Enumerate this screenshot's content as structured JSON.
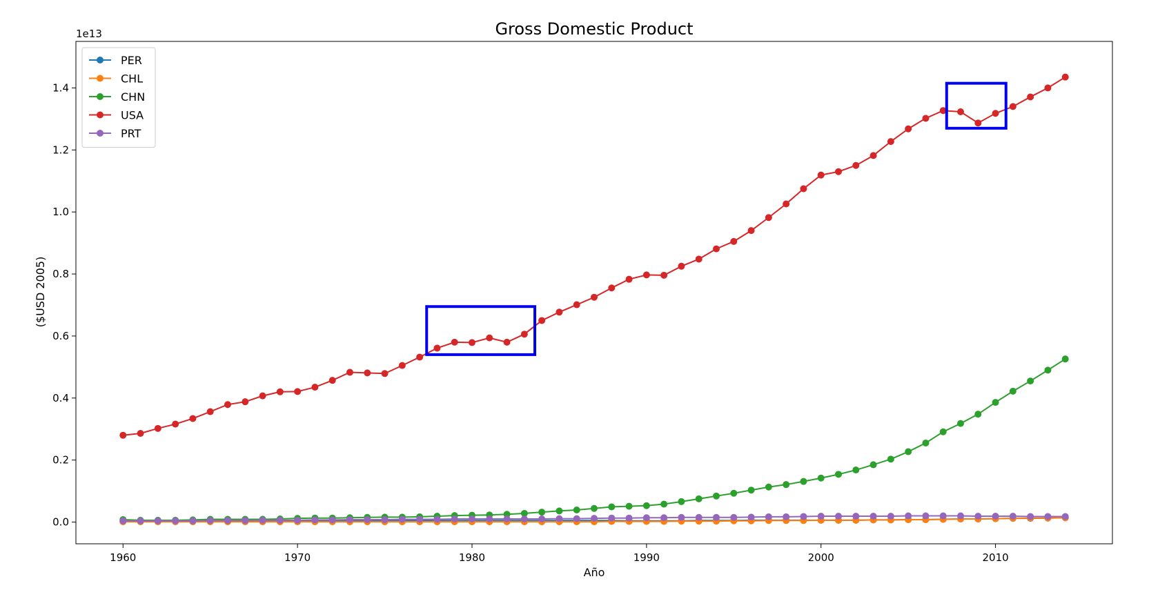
{
  "chart_data": {
    "type": "line",
    "title": "Gross Domestic Product",
    "xlabel": "Año",
    "ylabel": "($USD 2005)",
    "y_multiplier_label": "1e13",
    "xlim": [
      1957.3,
      2016.7
    ],
    "ylim": [
      -0.07,
      1.55
    ],
    "x_ticks": [
      1960,
      1970,
      1980,
      1990,
      2000,
      2010
    ],
    "y_ticks": [
      0.0,
      0.2,
      0.4,
      0.6,
      0.8,
      1.0,
      1.2,
      1.4
    ],
    "y_tick_labels": [
      "0.0",
      "0.2",
      "0.4",
      "0.6",
      "0.8",
      "1.0",
      "1.2",
      "1.4"
    ],
    "grid": false,
    "legend_position": "top-left",
    "x": [
      1960,
      1961,
      1962,
      1963,
      1964,
      1965,
      1966,
      1967,
      1968,
      1969,
      1970,
      1971,
      1972,
      1973,
      1974,
      1975,
      1976,
      1977,
      1978,
      1979,
      1980,
      1981,
      1982,
      1983,
      1984,
      1985,
      1986,
      1987,
      1988,
      1989,
      1990,
      1991,
      1992,
      1993,
      1994,
      1995,
      1996,
      1997,
      1998,
      1999,
      2000,
      2001,
      2002,
      2003,
      2004,
      2005,
      2006,
      2007,
      2008,
      2009,
      2010,
      2011,
      2012,
      2013,
      2014
    ],
    "series": [
      {
        "name": "PER",
        "color": "#1f77b4",
        "values": [
          0.003,
          0.003,
          0.003,
          0.003,
          0.003,
          0.003,
          0.003,
          0.004,
          0.004,
          0.004,
          0.004,
          0.004,
          0.004,
          0.004,
          0.004,
          0.005,
          0.005,
          0.005,
          0.005,
          0.005,
          0.005,
          0.005,
          0.005,
          0.005,
          0.005,
          0.005,
          0.005,
          0.005,
          0.005,
          0.004,
          0.004,
          0.004,
          0.004,
          0.005,
          0.005,
          0.005,
          0.006,
          0.006,
          0.006,
          0.006,
          0.006,
          0.006,
          0.006,
          0.007,
          0.007,
          0.008,
          0.008,
          0.009,
          0.01,
          0.01,
          0.011,
          0.012,
          0.012,
          0.013,
          0.014
        ]
      },
      {
        "name": "CHL",
        "color": "#ff7f0e",
        "values": [
          0.001,
          0.001,
          0.001,
          0.001,
          0.001,
          0.001,
          0.001,
          0.001,
          0.001,
          0.001,
          0.001,
          0.001,
          0.001,
          0.001,
          0.001,
          0.001,
          0.001,
          0.001,
          0.001,
          0.001,
          0.001,
          0.001,
          0.001,
          0.001,
          0.001,
          0.001,
          0.001,
          0.001,
          0.002,
          0.002,
          0.002,
          0.002,
          0.003,
          0.003,
          0.003,
          0.004,
          0.004,
          0.005,
          0.005,
          0.005,
          0.006,
          0.006,
          0.006,
          0.007,
          0.007,
          0.008,
          0.008,
          0.009,
          0.01,
          0.01,
          0.011,
          0.012,
          0.013,
          0.013,
          0.014
        ]
      },
      {
        "name": "CHN",
        "color": "#2ca02c",
        "values": [
          0.008,
          0.006,
          0.006,
          0.006,
          0.007,
          0.009,
          0.009,
          0.009,
          0.009,
          0.01,
          0.012,
          0.013,
          0.013,
          0.014,
          0.015,
          0.016,
          0.016,
          0.017,
          0.019,
          0.021,
          0.022,
          0.023,
          0.025,
          0.028,
          0.032,
          0.036,
          0.039,
          0.044,
          0.049,
          0.051,
          0.053,
          0.058,
          0.066,
          0.075,
          0.084,
          0.093,
          0.103,
          0.113,
          0.121,
          0.131,
          0.142,
          0.154,
          0.168,
          0.185,
          0.203,
          0.227,
          0.255,
          0.291,
          0.318,
          0.348,
          0.386,
          0.422,
          0.455,
          0.49,
          0.526
        ]
      },
      {
        "name": "USA",
        "color": "#d62728",
        "values": [
          0.28,
          0.286,
          0.302,
          0.316,
          0.334,
          0.356,
          0.379,
          0.388,
          0.407,
          0.42,
          0.421,
          0.435,
          0.457,
          0.483,
          0.481,
          0.479,
          0.505,
          0.532,
          0.561,
          0.58,
          0.579,
          0.594,
          0.58,
          0.606,
          0.65,
          0.677,
          0.701,
          0.725,
          0.755,
          0.783,
          0.797,
          0.796,
          0.825,
          0.848,
          0.881,
          0.905,
          0.94,
          0.982,
          1.026,
          1.075,
          1.119,
          1.13,
          1.15,
          1.182,
          1.227,
          1.268,
          1.302,
          1.327,
          1.323,
          1.287,
          1.318,
          1.34,
          1.371,
          1.4,
          1.435
        ]
      },
      {
        "name": "PRT",
        "color": "#9467bd",
        "values": [
          0.004,
          0.004,
          0.004,
          0.004,
          0.004,
          0.005,
          0.005,
          0.005,
          0.006,
          0.006,
          0.006,
          0.007,
          0.007,
          0.008,
          0.008,
          0.008,
          0.009,
          0.009,
          0.009,
          0.01,
          0.01,
          0.01,
          0.01,
          0.01,
          0.01,
          0.011,
          0.011,
          0.012,
          0.013,
          0.013,
          0.014,
          0.014,
          0.015,
          0.015,
          0.015,
          0.015,
          0.016,
          0.017,
          0.017,
          0.018,
          0.019,
          0.019,
          0.019,
          0.019,
          0.019,
          0.02,
          0.02,
          0.02,
          0.02,
          0.019,
          0.019,
          0.019,
          0.018,
          0.018,
          0.018
        ]
      }
    ],
    "annotations": [
      {
        "shape": "rectangle",
        "color": "#0000ee",
        "x_range": [
          1977.4,
          1983.6
        ],
        "y_range": [
          0.54,
          0.695
        ]
      },
      {
        "shape": "rectangle",
        "color": "#0000ee",
        "x_range": [
          2007.2,
          2010.6
        ],
        "y_range": [
          1.27,
          1.415
        ]
      }
    ]
  }
}
